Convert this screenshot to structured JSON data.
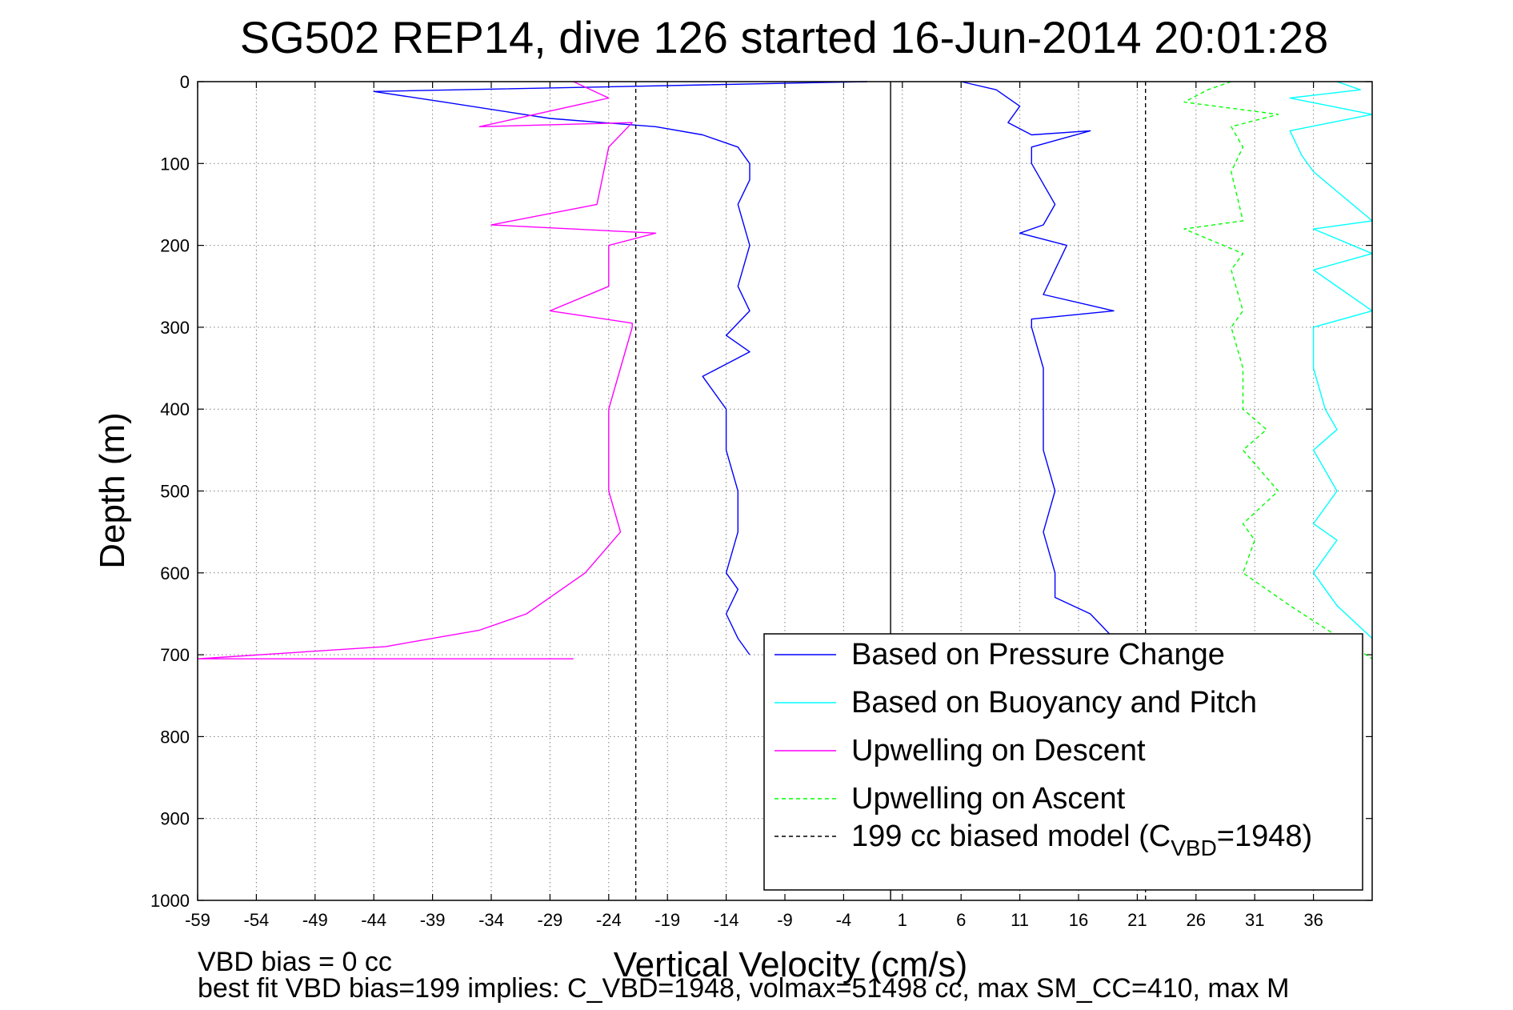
{
  "chart_data": {
    "type": "line",
    "title": "SG502 REP14, dive 126 started 16-Jun-2014 20:01:28",
    "xlabel": "Vertical Velocity (cm/s)",
    "ylabel": "Depth (m)",
    "xlim": [
      -59,
      41
    ],
    "ylim": [
      0,
      1000
    ],
    "y_reversed": true,
    "grid": true,
    "xticks": [
      "-59",
      "-54",
      "-49",
      "-44",
      "-39",
      "-34",
      "-29",
      "-24",
      "-19",
      "-14",
      "-9",
      "-4",
      "1",
      "6",
      "11",
      "16",
      "21",
      "26",
      "31",
      "36"
    ],
    "yticks": [
      "0",
      "100",
      "200",
      "300",
      "400",
      "500",
      "600",
      "700",
      "800",
      "900",
      "1000"
    ],
    "legend_position": "bottom-right",
    "legend": [
      {
        "label": "Based on Pressure Change",
        "color": "#0000ff",
        "style": "solid"
      },
      {
        "label": "Based on Buoyancy and Pitch",
        "color": "#00ffff",
        "style": "solid"
      },
      {
        "label": "Upwelling on Descent",
        "color": "#ff00ff",
        "style": "solid"
      },
      {
        "label": "Upwelling on Ascent",
        "color": "#00ff00",
        "style": "dashed"
      },
      {
        "label": "199 cc biased model (C",
        "sub": "VBD",
        "suffix": "=1948)",
        "color": "#000000",
        "style": "dashed"
      }
    ],
    "series": [
      {
        "name": "Based on Pressure Change",
        "color": "#0000ff",
        "style": "solid",
        "x": [
          -2,
          -44,
          -38,
          -29,
          -20,
          -16,
          -13,
          -12,
          -12,
          -13,
          -12,
          -13,
          -12,
          -14,
          -12,
          -16,
          -14,
          -14,
          -13,
          -13,
          -14,
          -13,
          -14,
          -13,
          -12
        ],
        "y": [
          0,
          12,
          25,
          45,
          55,
          65,
          80,
          100,
          120,
          150,
          200,
          250,
          280,
          310,
          330,
          360,
          400,
          450,
          500,
          550,
          600,
          620,
          650,
          680,
          700
        ]
      },
      {
        "name": "Based on Pressure Change",
        "color": "#0000ff",
        "style": "solid",
        "x": [
          6,
          9,
          11,
          10,
          12,
          17,
          12,
          12,
          14,
          13,
          11,
          15,
          14,
          13,
          19,
          12,
          12,
          13,
          13,
          13,
          14,
          13,
          14,
          14,
          17,
          19
        ],
        "y": [
          0,
          10,
          30,
          50,
          65,
          60,
          80,
          100,
          150,
          175,
          185,
          200,
          230,
          260,
          280,
          290,
          300,
          350,
          400,
          450,
          500,
          550,
          600,
          630,
          650,
          680
        ]
      },
      {
        "name": "Based on Buoyancy and Pitch",
        "color": "#00ffff",
        "style": "solid",
        "x": [
          38,
          40,
          34,
          41,
          34,
          35,
          36,
          41,
          36,
          41,
          36,
          41,
          36,
          36,
          37,
          38,
          36,
          38,
          36,
          38,
          36,
          38,
          41
        ],
        "y": [
          0,
          10,
          20,
          40,
          60,
          90,
          110,
          170,
          180,
          210,
          230,
          280,
          300,
          350,
          400,
          425,
          450,
          500,
          540,
          560,
          600,
          640,
          680
        ]
      },
      {
        "name": "Upwelling on Descent",
        "color": "#ff00ff",
        "style": "solid",
        "x": [
          -27,
          -24,
          -35,
          -22,
          -24,
          -25,
          -34,
          -20,
          -24,
          -24,
          -29,
          -22,
          -22,
          -23,
          -24,
          -24,
          -24,
          -23,
          -26,
          -31,
          -35,
          -43,
          -59,
          -27
        ],
        "y": [
          0,
          20,
          55,
          50,
          80,
          150,
          175,
          185,
          200,
          250,
          280,
          295,
          300,
          350,
          400,
          450,
          500,
          550,
          600,
          650,
          670,
          690,
          705,
          705
        ]
      },
      {
        "name": "Upwelling on Ascent",
        "color": "#00ff00",
        "style": "dashed",
        "x": [
          29,
          27,
          25,
          33,
          29,
          30,
          29,
          30,
          25,
          30,
          29,
          30,
          29,
          30,
          30,
          32,
          30,
          33,
          30,
          31,
          30,
          34,
          41
        ],
        "y": [
          0,
          10,
          25,
          40,
          55,
          80,
          110,
          170,
          180,
          210,
          230,
          280,
          300,
          350,
          400,
          425,
          450,
          500,
          540,
          560,
          600,
          640,
          705
        ]
      },
      {
        "name": "199 cc biased model (C_VBD=1948)",
        "color": "#000000",
        "style": "dashed",
        "x": [
          -21.7,
          -21.7
        ],
        "y": [
          0,
          1000
        ]
      },
      {
        "name": "199 cc biased model (C_VBD=1948)",
        "color": "#000000",
        "style": "dashed",
        "x": [
          21.7,
          21.7
        ],
        "y": [
          0,
          1000
        ]
      },
      {
        "name": "zero line",
        "color": "#000000",
        "style": "solid",
        "x": [
          0,
          0
        ],
        "y": [
          0,
          1000
        ]
      }
    ]
  },
  "footer": {
    "line1": "VBD bias = 0 cc",
    "line2": "best fit VBD bias=199 implies: C_VBD=1948, volmax=51498 cc, max SM_CC=410, max M"
  }
}
